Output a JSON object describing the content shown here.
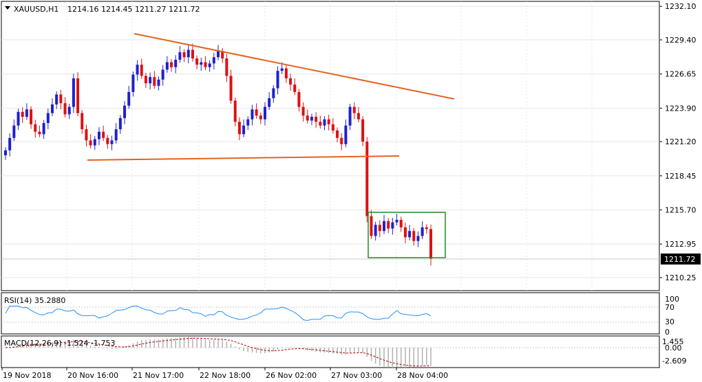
{
  "header": {
    "symbol": "XAUUSD,H1",
    "ohlc": "1214.16 1214.45 1211.27 1211.72"
  },
  "price_axis": {
    "ticks": [
      "1232.10",
      "1229.40",
      "1226.65",
      "1223.90",
      "1221.20",
      "1218.45",
      "1215.70",
      "1212.95",
      "1210.25"
    ],
    "current_price": "1211.72"
  },
  "time_axis": {
    "labels": [
      "19 Nov 2018",
      "20 Nov 16:00",
      "21 Nov 17:00",
      "22 Nov 18:00",
      "26 Nov 02:00",
      "27 Nov 03:00",
      "28 Nov 04:00"
    ]
  },
  "rsi": {
    "label": "RSI(14) 35.2880",
    "levels": [
      "100",
      "70",
      "30",
      "0"
    ]
  },
  "macd": {
    "label": "MACD(12,26,9) -1.524 -1.753",
    "levels": [
      "1.455",
      "0.00",
      "-2.609"
    ]
  },
  "colors": {
    "bull": "#2020cc",
    "bear": "#dd1111",
    "trendline": "#e8601c",
    "box": "#1e8c1e",
    "rsi_line": "#1e90ff",
    "macd_signal": "#aa0000",
    "macd_hist": "#b0b0b0",
    "grid": "#e4e6ec"
  },
  "chart_data": {
    "type": "candlestick",
    "title": "XAUUSD,H1",
    "ylim": [
      1209.2,
      1232.5
    ],
    "series": [
      {
        "name": "price",
        "values": [
          1220.5,
          1221.5,
          1222.5,
          1223.6,
          1223.2,
          1223.8,
          1222.6,
          1222.0,
          1221.8,
          1222.7,
          1223.5,
          1224.2,
          1225.0,
          1224.3,
          1223.4,
          1224.0,
          1226.3,
          1223.5,
          1222.2,
          1221.3,
          1220.9,
          1221.4,
          1222.0,
          1221.5,
          1221.0,
          1221.3,
          1222.2,
          1223.1,
          1224.1,
          1225.2,
          1226.6,
          1227.4,
          1226.5,
          1225.9,
          1226.4,
          1225.7,
          1226.2,
          1227.0,
          1227.6,
          1227.2,
          1227.8,
          1228.4,
          1228.0,
          1228.6,
          1227.9,
          1227.4,
          1227.6,
          1227.2,
          1227.5,
          1228.0,
          1228.5,
          1227.9,
          1226.5,
          1224.5,
          1222.8,
          1221.8,
          1222.5,
          1223.0,
          1223.8,
          1223.3,
          1223.0,
          1224.0,
          1224.7,
          1225.5,
          1226.9,
          1227.1,
          1226.3,
          1225.8,
          1225.2,
          1224.0,
          1223.3,
          1222.9,
          1223.2,
          1222.8,
          1222.5,
          1223.0,
          1222.6,
          1222.1,
          1221.5,
          1221.0,
          1222.5,
          1224.0,
          1223.5,
          1223.0,
          1221.2,
          1215.2,
          1213.6,
          1214.5,
          1214.0,
          1214.8,
          1214.2,
          1214.7,
          1214.9,
          1214.3,
          1213.5,
          1214.0,
          1213.2,
          1213.6,
          1214.3,
          1214.16,
          1211.72
        ]
      }
    ],
    "annotations": [
      "descending trendline",
      "horizontal support line",
      "consolidation box"
    ]
  }
}
